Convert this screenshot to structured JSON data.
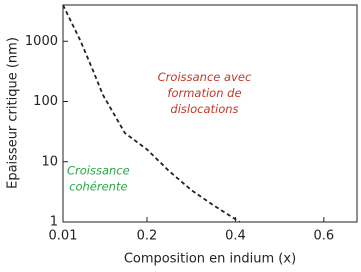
{
  "chart_data": {
    "type": "line",
    "xlabel": "Composition en indium (x)",
    "ylabel": "Epaisseur critique (nm)",
    "x": [
      0.01,
      0.03,
      0.05,
      0.08,
      0.1,
      0.15,
      0.2,
      0.25,
      0.3,
      0.35,
      0.41
    ],
    "series": [
      {
        "color": "#222222",
        "values": [
          4000,
          2000,
          1000,
          300,
          130,
          30,
          16,
          7,
          3.4,
          1.9,
          1
        ]
      }
    ],
    "xlim": [
      0.01,
      0.675
    ],
    "xticks": [
      0.01,
      0.2,
      0.4,
      0.6
    ],
    "ylim": [
      1,
      4000
    ],
    "log_y": true,
    "yticks": [
      1,
      10,
      100,
      1000
    ],
    "annotations": [
      {
        "lines": [
          "Croissance avec",
          "formation de",
          "dislocations"
        ],
        "color": "#c0392b",
        "x": 0.33,
        "y": 250
      },
      {
        "lines": [
          "Croissance",
          "cohérente"
        ],
        "color": "#27a844",
        "x": 0.09,
        "y": 7
      }
    ]
  }
}
